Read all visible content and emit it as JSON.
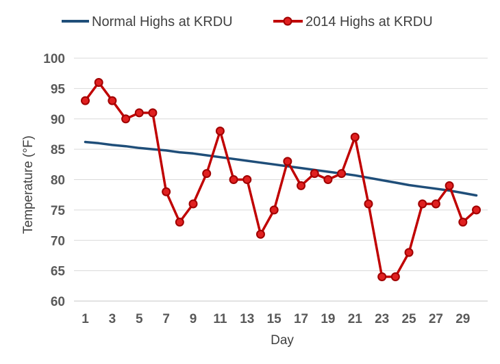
{
  "chart_data": {
    "type": "line",
    "title": "",
    "xlabel": "Day",
    "ylabel": "Temperature (°F)",
    "ylim": [
      60,
      100
    ],
    "xlim": [
      1,
      30
    ],
    "grid": true,
    "legend_position": "top",
    "x": [
      1,
      2,
      3,
      4,
      5,
      6,
      7,
      8,
      9,
      10,
      11,
      12,
      13,
      14,
      15,
      16,
      17,
      18,
      19,
      20,
      21,
      22,
      23,
      24,
      25,
      26,
      27,
      28,
      29,
      30
    ],
    "x_tick_labels": [
      "1",
      "3",
      "5",
      "7",
      "9",
      "11",
      "13",
      "15",
      "17",
      "19",
      "21",
      "23",
      "25",
      "27",
      "29"
    ],
    "y_tick_labels": [
      "60",
      "65",
      "70",
      "75",
      "80",
      "85",
      "90",
      "95",
      "100"
    ],
    "series": [
      {
        "name": "Normal Highs at KRDU",
        "color": "#1f4e79",
        "marker": false,
        "values": [
          86.2,
          86.0,
          85.7,
          85.5,
          85.2,
          85.0,
          84.8,
          84.5,
          84.3,
          84.0,
          83.7,
          83.4,
          83.1,
          82.8,
          82.5,
          82.2,
          81.9,
          81.6,
          81.3,
          81.0,
          80.7,
          80.3,
          79.9,
          79.5,
          79.1,
          78.8,
          78.5,
          78.2,
          77.8,
          77.4
        ]
      },
      {
        "name": "2014 Highs at KRDU",
        "color": "#c00000",
        "marker": true,
        "values": [
          93,
          96,
          93,
          90,
          91,
          91,
          78,
          73,
          76,
          81,
          88,
          80,
          80,
          71,
          75,
          83,
          79,
          81,
          80,
          81,
          87,
          76,
          64,
          64,
          68,
          76,
          76,
          79,
          73,
          75
        ]
      }
    ]
  }
}
